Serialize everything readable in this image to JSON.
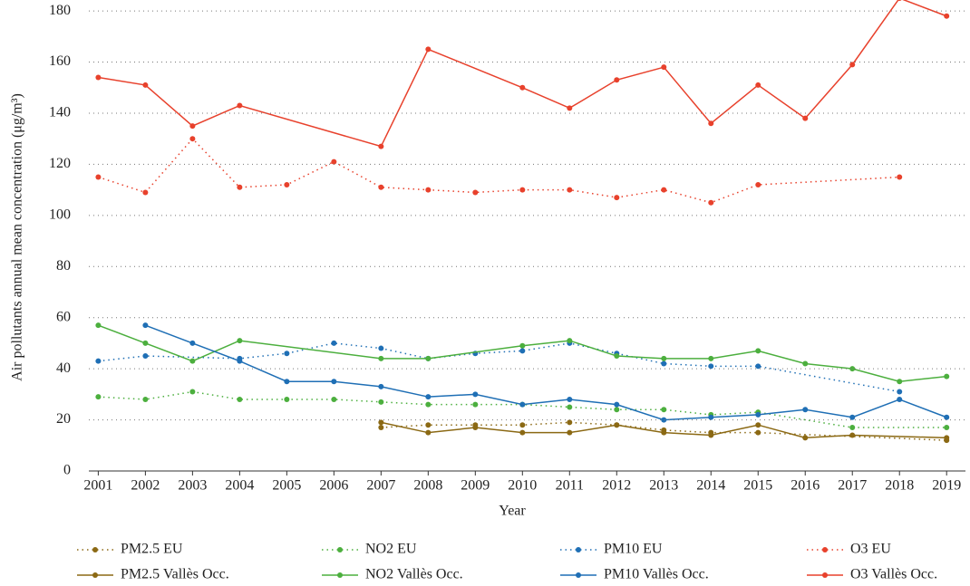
{
  "chart_data": {
    "type": "line",
    "xlabel": "Year",
    "ylabel": "Air pollutants annual mean concentration (μg/m³)",
    "xlim": [
      2000.8,
      2019.4
    ],
    "xticks": [
      2001,
      2002,
      2003,
      2004,
      2005,
      2006,
      2007,
      2008,
      2009,
      2010,
      2011,
      2012,
      2013,
      2014,
      2015,
      2016,
      2017,
      2018,
      2019
    ],
    "ylim": [
      0,
      185
    ],
    "yticks": [
      0,
      20,
      40,
      60,
      80,
      100,
      120,
      140,
      160,
      180
    ],
    "grid": true,
    "legend": "bottom",
    "series": [
      {
        "name": "PM2.5 EU",
        "color": "#8b6914",
        "line_style": "dotted",
        "x": [
          2007,
          2008,
          2009,
          2010,
          2011,
          2012,
          2013,
          2014,
          2015,
          2019
        ],
        "values": [
          17,
          18,
          18,
          18,
          19,
          18,
          16,
          15,
          15,
          12
        ]
      },
      {
        "name": "NO2 EU",
        "color": "#4caf3e",
        "line_style": "dotted",
        "x": [
          2001,
          2002,
          2003,
          2004,
          2005,
          2006,
          2007,
          2008,
          2009,
          2010,
          2011,
          2012,
          2013,
          2014,
          2015,
          2017,
          2019
        ],
        "values": [
          29,
          28,
          31,
          28,
          28,
          28,
          27,
          26,
          26,
          26,
          25,
          24,
          24,
          22,
          23,
          17,
          17
        ]
      },
      {
        "name": "PM10 EU",
        "color": "#1f6fb5",
        "line_style": "dotted",
        "x": [
          2001,
          2002,
          2004,
          2005,
          2006,
          2007,
          2008,
          2009,
          2010,
          2011,
          2012,
          2013,
          2014,
          2015,
          2018
        ],
        "values": [
          43,
          45,
          44,
          46,
          50,
          48,
          44,
          46,
          47,
          50,
          46,
          42,
          41,
          41,
          31
        ]
      },
      {
        "name": "O3 EU",
        "color": "#e8412c",
        "line_style": "dotted",
        "x": [
          2001,
          2002,
          2003,
          2004,
          2005,
          2006,
          2007,
          2008,
          2009,
          2010,
          2011,
          2012,
          2013,
          2014,
          2015,
          2018
        ],
        "values": [
          115,
          109,
          130,
          111,
          112,
          121,
          111,
          110,
          109,
          110,
          110,
          107,
          110,
          105,
          112,
          115
        ]
      },
      {
        "name": "PM2.5 Vallès Occ.",
        "color": "#8b6914",
        "line_style": "solid",
        "x": [
          2007,
          2008,
          2009,
          2010,
          2011,
          2012,
          2013,
          2014,
          2015,
          2016,
          2017,
          2019
        ],
        "values": [
          19,
          15,
          17,
          15,
          15,
          18,
          15,
          14,
          18,
          13,
          14,
          13
        ]
      },
      {
        "name": "NO2 Vallès Occ.",
        "color": "#4caf3e",
        "line_style": "solid",
        "x": [
          2001,
          2002,
          2003,
          2004,
          2007,
          2008,
          2010,
          2011,
          2012,
          2013,
          2014,
          2015,
          2016,
          2017,
          2018,
          2019
        ],
        "values": [
          57,
          50,
          43,
          51,
          44,
          44,
          49,
          51,
          45,
          44,
          44,
          47,
          42,
          40,
          35,
          37
        ]
      },
      {
        "name": "PM10 Vallès Occ.",
        "color": "#1f6fb5",
        "line_style": "solid",
        "x": [
          2002,
          2003,
          2004,
          2005,
          2006,
          2007,
          2008,
          2009,
          2010,
          2011,
          2012,
          2013,
          2014,
          2015,
          2016,
          2017,
          2018,
          2019
        ],
        "values": [
          57,
          50,
          43,
          35,
          35,
          33,
          29,
          30,
          26,
          28,
          26,
          20,
          21,
          22,
          24,
          21,
          28,
          21
        ]
      },
      {
        "name": "O3 Vallès Occ.",
        "color": "#e8412c",
        "line_style": "solid",
        "x": [
          2001,
          2002,
          2003,
          2004,
          2007,
          2008,
          2010,
          2011,
          2012,
          2013,
          2014,
          2015,
          2016,
          2017,
          2018,
          2019
        ],
        "values": [
          154,
          151,
          135,
          143,
          127,
          165,
          150,
          142,
          153,
          158,
          136,
          151,
          138,
          159,
          185,
          178
        ]
      }
    ]
  }
}
